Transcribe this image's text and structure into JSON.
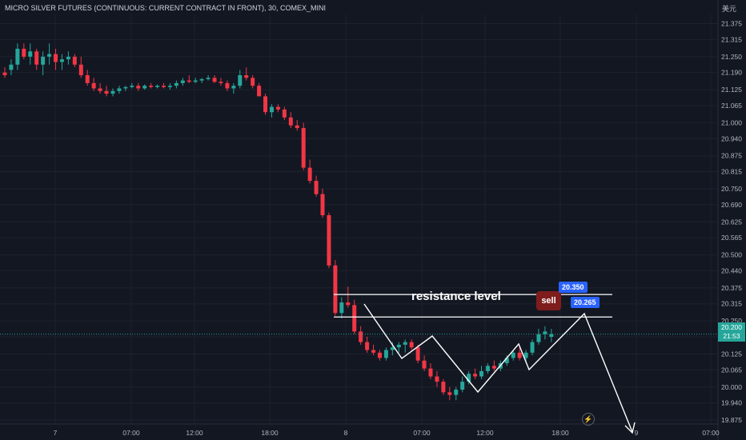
{
  "header": {
    "title": "MICRO SILVER FUTURES (CONTINUOUS: CURRENT CONTRACT IN FRONT), 30, COMEX_MINI",
    "currency": "美元"
  },
  "colors": {
    "background": "#131722",
    "up": "#26a69a",
    "down": "#f23645",
    "axis_text": "#b2b5be",
    "price_badge": "#2962ff",
    "sell_badge": "#7f1d1d"
  },
  "annotations": {
    "resistance_label": "resistance level",
    "sell_label": "sell",
    "upper_level": "20.350",
    "lower_level": "20.265",
    "last_price": "20.200",
    "countdown": "21:53",
    "bolt_icon": "lightning-icon"
  },
  "chart_data": {
    "type": "candlestick",
    "title": "MICRO SILVER FUTURES (CONTINUOUS: CURRENT CONTRACT IN FRONT), 30, COMEX_MINI",
    "y_ticks": [
      "21.375",
      "21.315",
      "21.250",
      "21.190",
      "21.125",
      "21.065",
      "21.000",
      "20.940",
      "20.875",
      "20.815",
      "20.750",
      "20.690",
      "20.625",
      "20.565",
      "20.500",
      "20.440",
      "20.375",
      "20.315",
      "20.250",
      "20.190",
      "20.125",
      "20.065",
      "20.000",
      "19.940",
      "19.875"
    ],
    "x_ticks": [
      "7",
      "07:00",
      "12:00",
      "18:00",
      "8",
      "07:00",
      "12:00",
      "18:00",
      "9",
      "07:00"
    ],
    "ylim": [
      19.86,
      21.41
    ],
    "resistance_levels": [
      20.35,
      20.265
    ],
    "last_price": 20.2,
    "candles": [
      [
        21.19,
        21.21,
        21.17,
        21.18
      ],
      [
        21.2,
        21.24,
        21.18,
        21.22
      ],
      [
        21.22,
        21.3,
        21.2,
        21.28
      ],
      [
        21.28,
        21.3,
        21.24,
        21.25
      ],
      [
        21.25,
        21.3,
        21.22,
        21.27
      ],
      [
        21.27,
        21.28,
        21.2,
        21.22
      ],
      [
        21.22,
        21.27,
        21.18,
        21.25
      ],
      [
        21.25,
        21.3,
        21.22,
        21.26
      ],
      [
        21.26,
        21.28,
        21.2,
        21.23
      ],
      [
        21.23,
        21.26,
        21.2,
        21.24
      ],
      [
        21.24,
        21.27,
        21.22,
        21.25
      ],
      [
        21.25,
        21.26,
        21.21,
        21.22
      ],
      [
        21.22,
        21.25,
        21.17,
        21.18
      ],
      [
        21.18,
        21.2,
        21.14,
        21.15
      ],
      [
        21.15,
        21.17,
        21.12,
        21.13
      ],
      [
        21.13,
        21.15,
        21.11,
        21.12
      ],
      [
        21.12,
        21.14,
        21.1,
        21.11
      ],
      [
        21.11,
        21.13,
        21.1,
        21.12
      ],
      [
        21.12,
        21.14,
        21.11,
        21.13
      ],
      [
        21.13,
        21.14,
        21.12,
        21.135
      ],
      [
        21.135,
        21.15,
        21.13,
        21.14
      ],
      [
        21.14,
        21.15,
        21.12,
        21.13
      ],
      [
        21.13,
        21.145,
        21.125,
        21.14
      ],
      [
        21.14,
        21.15,
        21.13,
        21.135
      ],
      [
        21.135,
        21.145,
        21.13,
        21.14
      ],
      [
        21.14,
        21.15,
        21.13,
        21.135
      ],
      [
        21.135,
        21.15,
        21.125,
        21.14
      ],
      [
        21.14,
        21.16,
        21.13,
        21.15
      ],
      [
        21.15,
        21.17,
        21.14,
        21.16
      ],
      [
        21.16,
        21.18,
        21.15,
        21.155
      ],
      [
        21.155,
        21.17,
        21.15,
        21.16
      ],
      [
        21.16,
        21.17,
        21.15,
        21.165
      ],
      [
        21.165,
        21.18,
        21.16,
        21.17
      ],
      [
        21.17,
        21.18,
        21.15,
        21.155
      ],
      [
        21.155,
        21.17,
        21.14,
        21.15
      ],
      [
        21.15,
        21.16,
        21.12,
        21.13
      ],
      [
        21.13,
        21.15,
        21.11,
        21.14
      ],
      [
        21.14,
        21.2,
        21.13,
        21.18
      ],
      [
        21.18,
        21.21,
        21.16,
        21.17
      ],
      [
        21.17,
        21.18,
        21.13,
        21.14
      ],
      [
        21.14,
        21.15,
        21.1,
        21.1
      ],
      [
        21.1,
        21.11,
        21.03,
        21.04
      ],
      [
        21.04,
        21.07,
        21.02,
        21.06
      ],
      [
        21.06,
        21.07,
        21.04,
        21.05
      ],
      [
        21.05,
        21.06,
        21.01,
        21.02
      ],
      [
        21.02,
        21.04,
        20.98,
        20.99
      ],
      [
        20.99,
        21.01,
        20.97,
        20.98
      ],
      [
        20.98,
        21.0,
        20.82,
        20.83
      ],
      [
        20.83,
        20.86,
        20.77,
        20.78
      ],
      [
        20.78,
        20.8,
        20.72,
        20.73
      ],
      [
        20.73,
        20.75,
        20.64,
        20.65
      ],
      [
        20.65,
        20.66,
        20.45,
        20.46
      ],
      [
        20.46,
        20.48,
        20.27,
        20.28
      ],
      [
        20.28,
        20.34,
        20.26,
        20.32
      ],
      [
        20.32,
        20.38,
        20.3,
        20.31
      ],
      [
        20.31,
        20.33,
        20.2,
        20.21
      ],
      [
        20.21,
        20.23,
        20.16,
        20.17
      ],
      [
        20.17,
        20.19,
        20.13,
        20.14
      ],
      [
        20.14,
        20.16,
        20.12,
        20.13
      ],
      [
        20.13,
        20.14,
        20.1,
        20.11
      ],
      [
        20.11,
        20.15,
        20.1,
        20.14
      ],
      [
        20.14,
        20.17,
        20.12,
        20.15
      ],
      [
        20.15,
        20.17,
        20.13,
        20.16
      ],
      [
        20.16,
        20.18,
        20.13,
        20.17
      ],
      [
        20.17,
        20.18,
        20.14,
        20.15
      ],
      [
        20.15,
        20.16,
        20.09,
        20.1
      ],
      [
        20.1,
        20.12,
        20.06,
        20.07
      ],
      [
        20.07,
        20.09,
        20.03,
        20.04
      ],
      [
        20.04,
        20.06,
        20.0,
        20.02
      ],
      [
        20.02,
        20.03,
        19.97,
        19.98
      ],
      [
        19.98,
        20.0,
        19.95,
        19.97
      ],
      [
        19.97,
        20.0,
        19.95,
        19.99
      ],
      [
        19.99,
        20.04,
        19.98,
        20.02
      ],
      [
        20.02,
        20.06,
        20.01,
        20.05
      ],
      [
        20.05,
        20.07,
        20.03,
        20.04
      ],
      [
        20.04,
        20.08,
        20.03,
        20.06
      ],
      [
        20.06,
        20.09,
        20.05,
        20.08
      ],
      [
        20.08,
        20.1,
        20.06,
        20.07
      ],
      [
        20.07,
        20.1,
        20.06,
        20.09
      ],
      [
        20.09,
        20.12,
        20.08,
        20.11
      ],
      [
        20.11,
        20.14,
        20.1,
        20.13
      ],
      [
        20.13,
        20.15,
        20.1,
        20.11
      ],
      [
        20.11,
        20.14,
        20.09,
        20.13
      ],
      [
        20.13,
        20.18,
        20.12,
        20.17
      ],
      [
        20.17,
        20.22,
        20.16,
        20.2
      ],
      [
        20.2,
        20.23,
        20.18,
        20.21
      ],
      [
        20.19,
        20.22,
        20.17,
        20.2
      ]
    ]
  }
}
